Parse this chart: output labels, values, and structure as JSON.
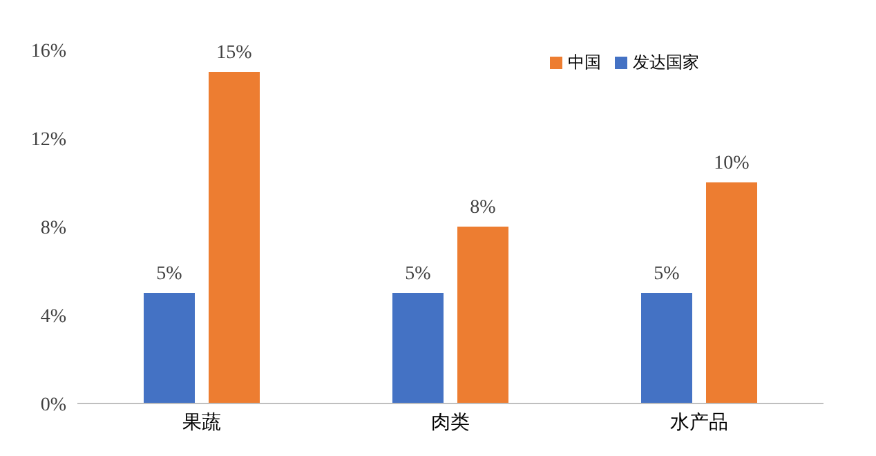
{
  "chart_data": {
    "type": "bar",
    "categories": [
      "果蔬",
      "肉类",
      "水产品"
    ],
    "series": [
      {
        "name": "发达国家",
        "color": "#4472c4",
        "values": [
          5,
          5,
          5
        ],
        "value_labels": [
          "5%",
          "5%",
          "5%"
        ]
      },
      {
        "name": "中国",
        "color": "#ed7d31",
        "values": [
          15,
          8,
          10
        ],
        "value_labels": [
          "15%",
          "8%",
          "10%"
        ]
      }
    ],
    "ylim": [
      0,
      16
    ],
    "yticks": [
      {
        "value": 0,
        "label": "0%"
      },
      {
        "value": 4,
        "label": "4%"
      },
      {
        "value": 8,
        "label": "8%"
      },
      {
        "value": 12,
        "label": "12%"
      },
      {
        "value": 16,
        "label": "16%"
      }
    ],
    "grid": false,
    "legend": "top right"
  }
}
